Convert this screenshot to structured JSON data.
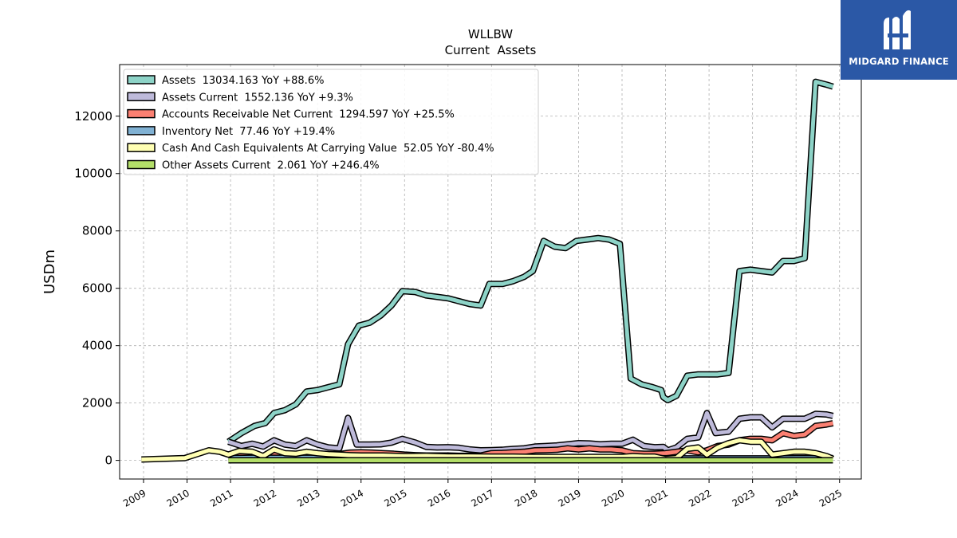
{
  "chart_data": {
    "type": "line",
    "title": "WLLBW",
    "subtitle": "Current  Assets",
    "ylabel": "USDm",
    "xlabel": "",
    "xlim": [
      2008.45,
      2025.5
    ],
    "ylim": [
      -650,
      13800
    ],
    "yticks": [
      0,
      2000,
      4000,
      6000,
      8000,
      10000,
      12000
    ],
    "xticks": [
      2009,
      2010,
      2011,
      2012,
      2013,
      2014,
      2015,
      2016,
      2017,
      2018,
      2019,
      2020,
      2021,
      2022,
      2023,
      2024,
      2025
    ],
    "grid": true,
    "legend_position": "top-left",
    "series": [
      {
        "name": "Assets  13034.163 YoY +88.6%",
        "color": "#8dd3c7",
        "points": [
          [
            2010.95,
            650
          ],
          [
            2011.25,
            950
          ],
          [
            2011.55,
            1200
          ],
          [
            2011.8,
            1300
          ],
          [
            2012.0,
            1650
          ],
          [
            2012.25,
            1750
          ],
          [
            2012.5,
            1950
          ],
          [
            2012.75,
            2400
          ],
          [
            2013.0,
            2450
          ],
          [
            2013.25,
            2550
          ],
          [
            2013.5,
            2650
          ],
          [
            2013.7,
            4050
          ],
          [
            2013.95,
            4700
          ],
          [
            2014.2,
            4800
          ],
          [
            2014.45,
            5050
          ],
          [
            2014.7,
            5400
          ],
          [
            2014.95,
            5900
          ],
          [
            2015.25,
            5870
          ],
          [
            2015.5,
            5750
          ],
          [
            2015.75,
            5700
          ],
          [
            2016.0,
            5650
          ],
          [
            2016.25,
            5550
          ],
          [
            2016.5,
            5450
          ],
          [
            2016.75,
            5400
          ],
          [
            2016.95,
            6150
          ],
          [
            2017.25,
            6150
          ],
          [
            2017.5,
            6250
          ],
          [
            2017.75,
            6400
          ],
          [
            2017.95,
            6600
          ],
          [
            2018.2,
            7650
          ],
          [
            2018.45,
            7450
          ],
          [
            2018.7,
            7400
          ],
          [
            2018.95,
            7650
          ],
          [
            2019.2,
            7700
          ],
          [
            2019.45,
            7750
          ],
          [
            2019.7,
            7700
          ],
          [
            2019.95,
            7550
          ],
          [
            2020.2,
            2850
          ],
          [
            2020.45,
            2650
          ],
          [
            2020.7,
            2550
          ],
          [
            2020.9,
            2450
          ],
          [
            2020.95,
            2200
          ],
          [
            2021.05,
            2100
          ],
          [
            2021.25,
            2250
          ],
          [
            2021.5,
            2950
          ],
          [
            2021.75,
            3000
          ],
          [
            2021.95,
            3000
          ],
          [
            2022.2,
            3000
          ],
          [
            2022.45,
            3050
          ],
          [
            2022.7,
            6600
          ],
          [
            2022.95,
            6650
          ],
          [
            2023.2,
            6600
          ],
          [
            2023.45,
            6550
          ],
          [
            2023.7,
            6950
          ],
          [
            2023.95,
            6950
          ],
          [
            2024.2,
            7050
          ],
          [
            2024.45,
            13200
          ],
          [
            2024.7,
            13100
          ],
          [
            2024.85,
            13030
          ]
        ]
      },
      {
        "name": "Assets Current  1552.136 YoY +9.3%",
        "color": "#bebada",
        "points": [
          [
            2010.95,
            650
          ],
          [
            2011.25,
            500
          ],
          [
            2011.5,
            580
          ],
          [
            2011.75,
            480
          ],
          [
            2012.0,
            700
          ],
          [
            2012.25,
            550
          ],
          [
            2012.5,
            500
          ],
          [
            2012.75,
            700
          ],
          [
            2013.0,
            550
          ],
          [
            2013.25,
            450
          ],
          [
            2013.5,
            420
          ],
          [
            2013.7,
            1480
          ],
          [
            2013.9,
            550
          ],
          [
            2014.2,
            550
          ],
          [
            2014.45,
            560
          ],
          [
            2014.7,
            620
          ],
          [
            2014.95,
            750
          ],
          [
            2015.25,
            620
          ],
          [
            2015.5,
            470
          ],
          [
            2015.75,
            450
          ],
          [
            2016.0,
            460
          ],
          [
            2016.25,
            440
          ],
          [
            2016.5,
            380
          ],
          [
            2016.75,
            350
          ],
          [
            2017.0,
            360
          ],
          [
            2017.25,
            370
          ],
          [
            2017.5,
            400
          ],
          [
            2017.75,
            420
          ],
          [
            2018.0,
            480
          ],
          [
            2018.25,
            500
          ],
          [
            2018.5,
            520
          ],
          [
            2018.75,
            560
          ],
          [
            2019.0,
            600
          ],
          [
            2019.25,
            590
          ],
          [
            2019.5,
            560
          ],
          [
            2019.75,
            580
          ],
          [
            2020.0,
            580
          ],
          [
            2020.25,
            720
          ],
          [
            2020.5,
            500
          ],
          [
            2020.75,
            460
          ],
          [
            2020.95,
            470
          ],
          [
            2021.05,
            350
          ],
          [
            2021.25,
            450
          ],
          [
            2021.5,
            750
          ],
          [
            2021.75,
            800
          ],
          [
            2021.95,
            1650
          ],
          [
            2022.15,
            950
          ],
          [
            2022.45,
            1000
          ],
          [
            2022.7,
            1450
          ],
          [
            2022.95,
            1500
          ],
          [
            2023.2,
            1500
          ],
          [
            2023.45,
            1150
          ],
          [
            2023.7,
            1450
          ],
          [
            2023.95,
            1450
          ],
          [
            2024.2,
            1450
          ],
          [
            2024.45,
            1620
          ],
          [
            2024.7,
            1600
          ],
          [
            2024.85,
            1550
          ]
        ]
      },
      {
        "name": "Accounts Receivable Net Current  1294.597 YoY +25.5%",
        "color": "#fb8072",
        "points": [
          [
            2010.95,
            120
          ],
          [
            2011.25,
            150
          ],
          [
            2011.5,
            160
          ],
          [
            2011.75,
            150
          ],
          [
            2012.0,
            200
          ],
          [
            2012.25,
            180
          ],
          [
            2012.5,
            190
          ],
          [
            2012.75,
            220
          ],
          [
            2013.0,
            200
          ],
          [
            2013.25,
            200
          ],
          [
            2013.5,
            220
          ],
          [
            2013.75,
            270
          ],
          [
            2014.0,
            280
          ],
          [
            2014.25,
            270
          ],
          [
            2014.5,
            250
          ],
          [
            2014.75,
            230
          ],
          [
            2015.0,
            200
          ],
          [
            2015.25,
            180
          ],
          [
            2015.5,
            170
          ],
          [
            2015.75,
            170
          ],
          [
            2016.0,
            170
          ],
          [
            2016.25,
            160
          ],
          [
            2016.5,
            160
          ],
          [
            2016.75,
            170
          ],
          [
            2017.0,
            250
          ],
          [
            2017.25,
            260
          ],
          [
            2017.5,
            280
          ],
          [
            2017.75,
            300
          ],
          [
            2018.0,
            350
          ],
          [
            2018.25,
            360
          ],
          [
            2018.5,
            370
          ],
          [
            2018.75,
            420
          ],
          [
            2019.0,
            380
          ],
          [
            2019.25,
            420
          ],
          [
            2019.5,
            380
          ],
          [
            2019.75,
            380
          ],
          [
            2020.0,
            350
          ],
          [
            2020.25,
            250
          ],
          [
            2020.5,
            230
          ],
          [
            2020.75,
            230
          ],
          [
            2021.0,
            250
          ],
          [
            2021.25,
            300
          ],
          [
            2021.5,
            350
          ],
          [
            2021.75,
            280
          ],
          [
            2021.95,
            350
          ],
          [
            2022.2,
            500
          ],
          [
            2022.45,
            550
          ],
          [
            2022.7,
            700
          ],
          [
            2022.95,
            750
          ],
          [
            2023.2,
            750
          ],
          [
            2023.45,
            700
          ],
          [
            2023.7,
            950
          ],
          [
            2023.95,
            850
          ],
          [
            2024.2,
            900
          ],
          [
            2024.45,
            1200
          ],
          [
            2024.7,
            1250
          ],
          [
            2024.85,
            1294
          ]
        ]
      },
      {
        "name": "Inventory Net  77.46 YoY +19.4%",
        "color": "#80b1d3",
        "points": [
          [
            2010.95,
            80
          ],
          [
            2011.5,
            90
          ],
          [
            2012.0,
            90
          ],
          [
            2012.5,
            90
          ],
          [
            2013.0,
            90
          ],
          [
            2013.5,
            90
          ],
          [
            2014.0,
            90
          ],
          [
            2014.5,
            90
          ],
          [
            2015.0,
            90
          ],
          [
            2015.5,
            90
          ],
          [
            2016.0,
            90
          ],
          [
            2016.5,
            90
          ],
          [
            2017.0,
            90
          ],
          [
            2017.5,
            90
          ],
          [
            2018.0,
            90
          ],
          [
            2018.5,
            90
          ],
          [
            2019.0,
            90
          ],
          [
            2019.5,
            90
          ],
          [
            2020.0,
            90
          ],
          [
            2020.5,
            80
          ],
          [
            2021.0,
            75
          ],
          [
            2021.5,
            70
          ],
          [
            2022.0,
            70
          ],
          [
            2022.5,
            70
          ],
          [
            2023.0,
            70
          ],
          [
            2023.5,
            70
          ],
          [
            2024.0,
            75
          ],
          [
            2024.5,
            75
          ],
          [
            2024.85,
            77
          ]
        ]
      },
      {
        "name": "Cash And Cash Equivalents At Carrying Value  52.05 YoY -80.4%",
        "color": "#ffffb3",
        "points": [
          [
            2008.95,
            30
          ],
          [
            2009.95,
            80
          ],
          [
            2010.5,
            350
          ],
          [
            2010.75,
            300
          ],
          [
            2010.95,
            200
          ],
          [
            2011.2,
            330
          ],
          [
            2011.5,
            300
          ],
          [
            2011.75,
            150
          ],
          [
            2012.0,
            380
          ],
          [
            2012.25,
            250
          ],
          [
            2012.5,
            230
          ],
          [
            2012.75,
            300
          ],
          [
            2013.0,
            250
          ],
          [
            2013.25,
            220
          ],
          [
            2013.5,
            200
          ],
          [
            2013.75,
            180
          ],
          [
            2014.0,
            170
          ],
          [
            2014.5,
            170
          ],
          [
            2015.0,
            150
          ],
          [
            2015.5,
            160
          ],
          [
            2016.0,
            140
          ],
          [
            2016.5,
            140
          ],
          [
            2017.0,
            130
          ],
          [
            2017.5,
            130
          ],
          [
            2018.0,
            120
          ],
          [
            2018.5,
            120
          ],
          [
            2019.0,
            120
          ],
          [
            2019.5,
            120
          ],
          [
            2020.0,
            120
          ],
          [
            2020.25,
            150
          ],
          [
            2020.5,
            130
          ],
          [
            2020.75,
            130
          ],
          [
            2021.0,
            50
          ],
          [
            2021.25,
            80
          ],
          [
            2021.5,
            400
          ],
          [
            2021.75,
            450
          ],
          [
            2021.95,
            200
          ],
          [
            2022.2,
            450
          ],
          [
            2022.45,
            600
          ],
          [
            2022.7,
            700
          ],
          [
            2022.95,
            650
          ],
          [
            2023.2,
            650
          ],
          [
            2023.45,
            200
          ],
          [
            2023.7,
            250
          ],
          [
            2023.95,
            300
          ],
          [
            2024.2,
            300
          ],
          [
            2024.45,
            250
          ],
          [
            2024.7,
            150
          ],
          [
            2024.85,
            52
          ]
        ]
      },
      {
        "name": "Other Assets Current  2.061 YoY +246.4%",
        "color": "#b3de69",
        "points": [
          [
            2010.95,
            2
          ],
          [
            2011.5,
            2
          ],
          [
            2012.5,
            2
          ],
          [
            2013.5,
            2
          ],
          [
            2014.5,
            2
          ],
          [
            2015.5,
            2
          ],
          [
            2016.5,
            2
          ],
          [
            2017.5,
            2
          ],
          [
            2018.5,
            2
          ],
          [
            2019.5,
            2
          ],
          [
            2020.5,
            2
          ],
          [
            2021.5,
            2
          ],
          [
            2022.5,
            2
          ],
          [
            2023.5,
            2
          ],
          [
            2024.5,
            2
          ],
          [
            2024.85,
            2
          ]
        ]
      }
    ]
  },
  "logo": {
    "text": "MIDGARD FINANCE",
    "background": "#2b58a6"
  }
}
